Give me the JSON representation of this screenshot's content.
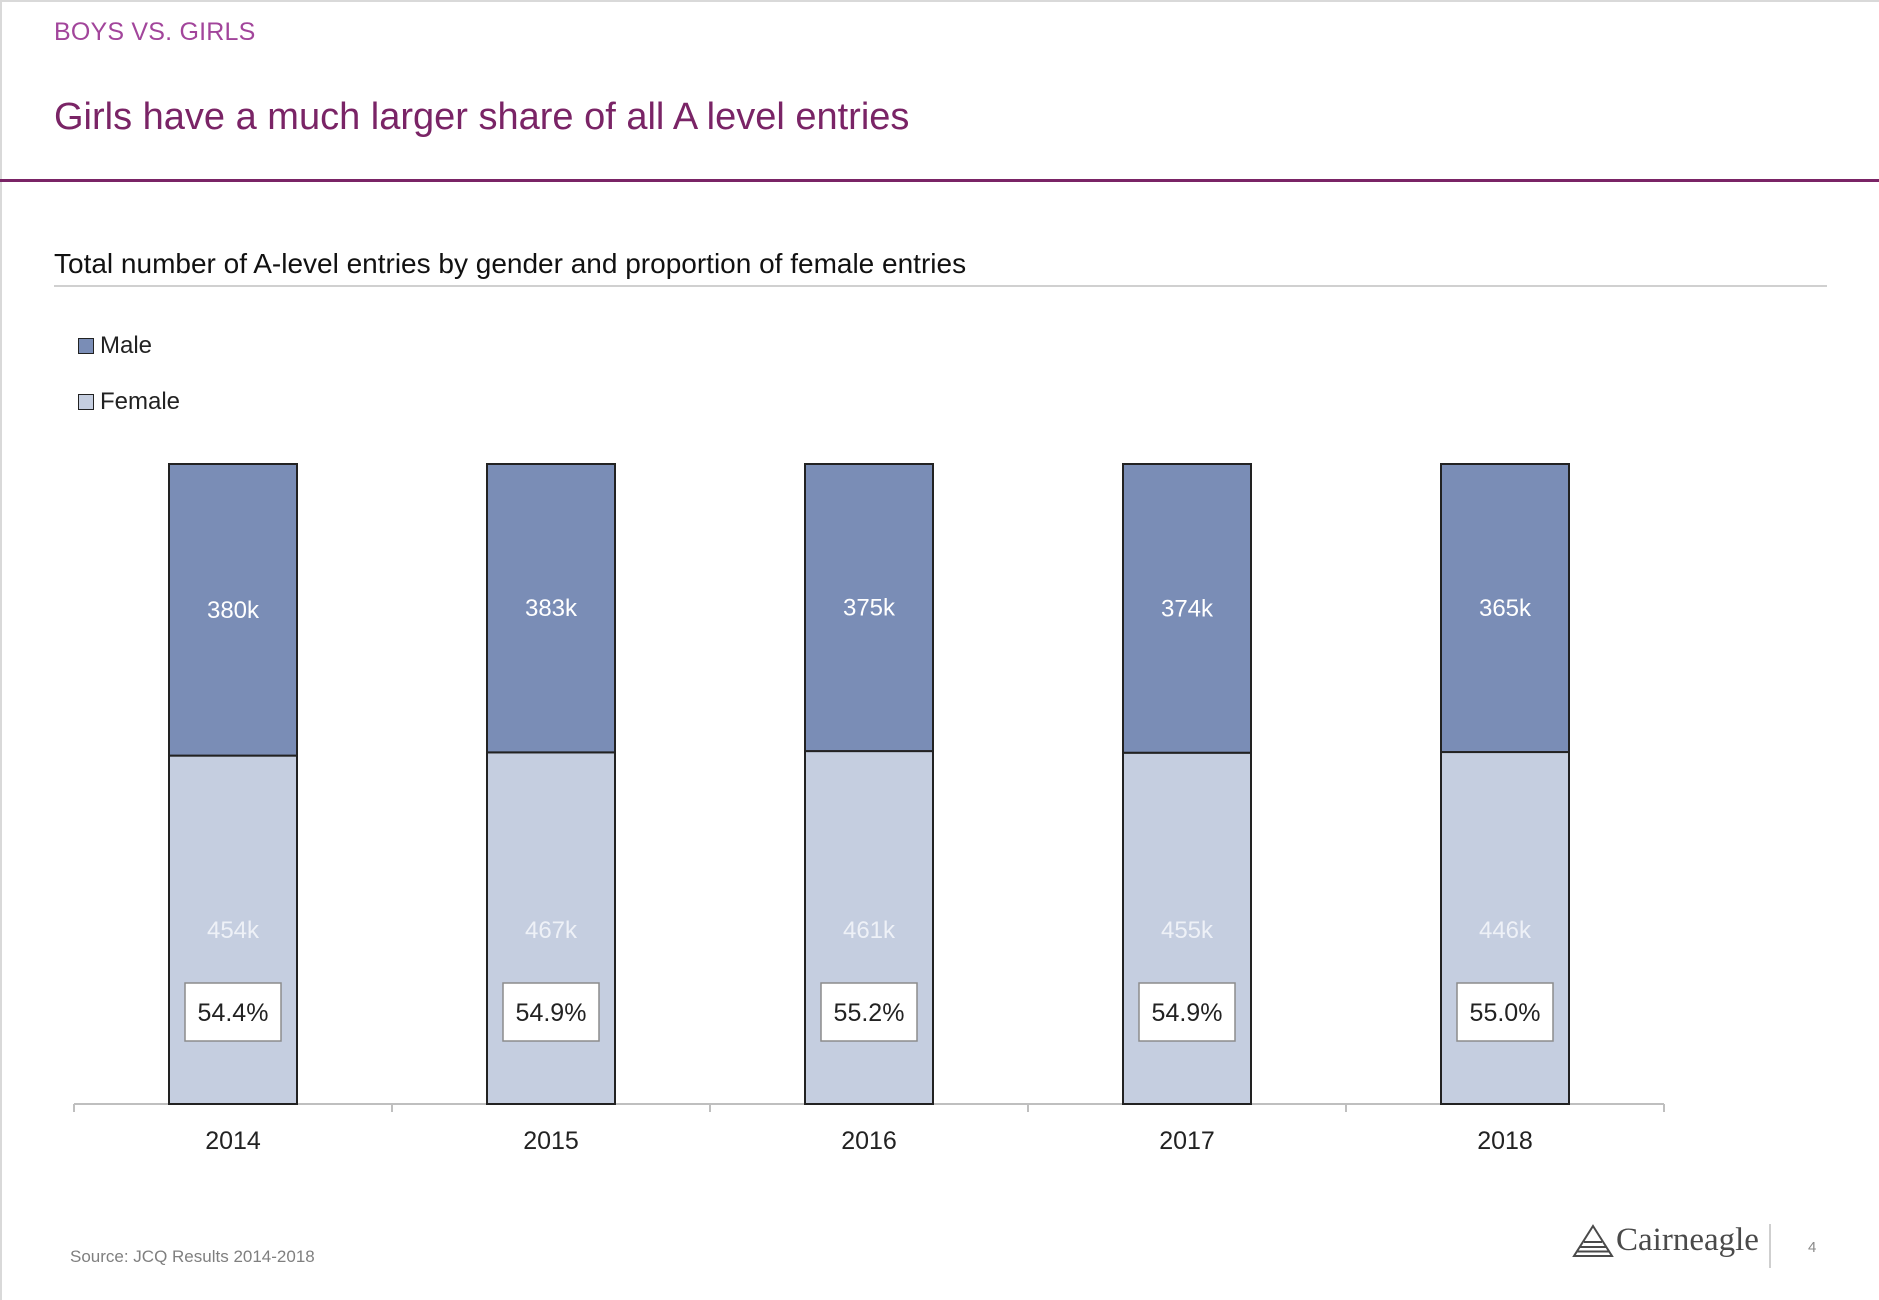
{
  "header": {
    "section_label": "BOYS VS. GIRLS",
    "title": "Girls have a much larger share of all A level entries"
  },
  "chart_data": {
    "type": "bar",
    "stacked": true,
    "title": "Total number of A-level entries by gender and proportion of female entries",
    "categories": [
      "2014",
      "2015",
      "2016",
      "2017",
      "2018"
    ],
    "series": [
      {
        "name": "Female",
        "values": [
          454,
          467,
          461,
          455,
          446
        ],
        "labels": [
          "454k",
          "467k",
          "461k",
          "455k",
          "446k"
        ],
        "color": "#c5cee0"
      },
      {
        "name": "Male",
        "values": [
          380,
          383,
          375,
          374,
          365
        ],
        "labels": [
          "380k",
          "383k",
          "375k",
          "374k",
          "365k"
        ],
        "color": "#7a8db6"
      }
    ],
    "female_share": [
      "54.4%",
      "54.9%",
      "55.2%",
      "54.9%",
      "55.0%"
    ],
    "normalized": true,
    "legend": {
      "placement": "top-left",
      "order": [
        "Male",
        "Female"
      ]
    },
    "grid": false
  },
  "footer": {
    "source": "Source: JCQ Results 2014-2018",
    "logo_text": "Cairneagle",
    "page_number": "4"
  },
  "colors": {
    "accent": "#7a2466",
    "section_label": "#a2459b",
    "male": "#7a8db6",
    "female": "#c5cee0"
  }
}
